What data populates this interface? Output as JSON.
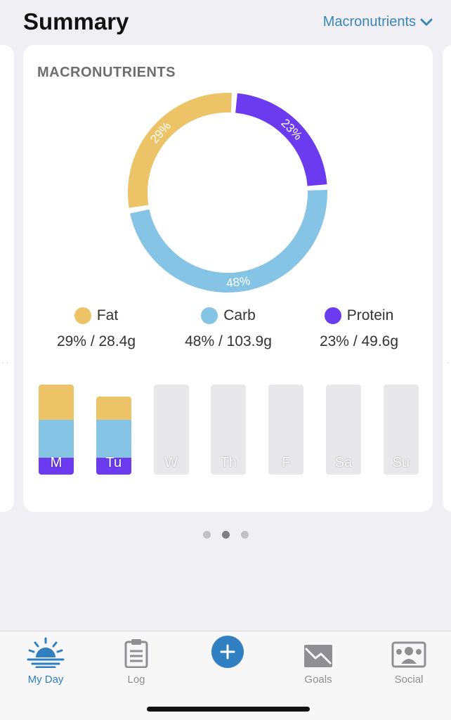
{
  "header": {
    "title": "Summary",
    "view_selector": "Macronutrients"
  },
  "card": {
    "title": "MACRONUTRIENTS"
  },
  "chart_data": [
    {
      "type": "pie",
      "title": "MACRONUTRIENTS",
      "slices": [
        {
          "name": "Protein",
          "percent": 23,
          "label": "23%",
          "color": "#6a3bef"
        },
        {
          "name": "Carb",
          "percent": 48,
          "label": "48%",
          "color": "#86c4e6"
        },
        {
          "name": "Fat",
          "percent": 29,
          "label": "29%",
          "color": "#ecc467"
        }
      ],
      "donut": true
    },
    {
      "type": "bar",
      "stacked": true,
      "categories": [
        "M",
        "Tu",
        "W",
        "Th",
        "F",
        "Sa",
        "Su"
      ],
      "series": [
        {
          "name": "Protein",
          "color": "#6a3bef",
          "values": [
            0.19,
            0.19,
            0,
            0,
            0,
            0,
            0
          ]
        },
        {
          "name": "Carb",
          "color": "#86c4e6",
          "values": [
            0.42,
            0.42,
            0,
            0,
            0,
            0,
            0
          ]
        },
        {
          "name": "Fat",
          "color": "#ecc467",
          "values": [
            0.39,
            0.26,
            0,
            0,
            0,
            0,
            0
          ]
        }
      ],
      "empty_color": "#e8e8ea"
    }
  ],
  "legend": [
    {
      "name": "Fat",
      "value": "29% / 28.4g",
      "color": "#ecc467"
    },
    {
      "name": "Carb",
      "value": "48% / 103.9g",
      "color": "#86c4e6"
    },
    {
      "name": "Protein",
      "value": "23% / 49.6g",
      "color": "#6a3bef"
    }
  ],
  "pager": {
    "count": 3,
    "active": 1
  },
  "tabs": [
    {
      "label": "My Day",
      "icon": "sunrise-icon",
      "active": true
    },
    {
      "label": "Log",
      "icon": "clipboard-icon",
      "active": false
    },
    {
      "label": "",
      "icon": "plus-icon",
      "active": false
    },
    {
      "label": "Goals",
      "icon": "chart-envelope-icon",
      "active": false
    },
    {
      "label": "Social",
      "icon": "people-icon",
      "active": false
    }
  ],
  "colors": {
    "accent": "#2f7fc1",
    "fat": "#ecc467",
    "carb": "#86c4e6",
    "protein": "#6a3bef"
  }
}
